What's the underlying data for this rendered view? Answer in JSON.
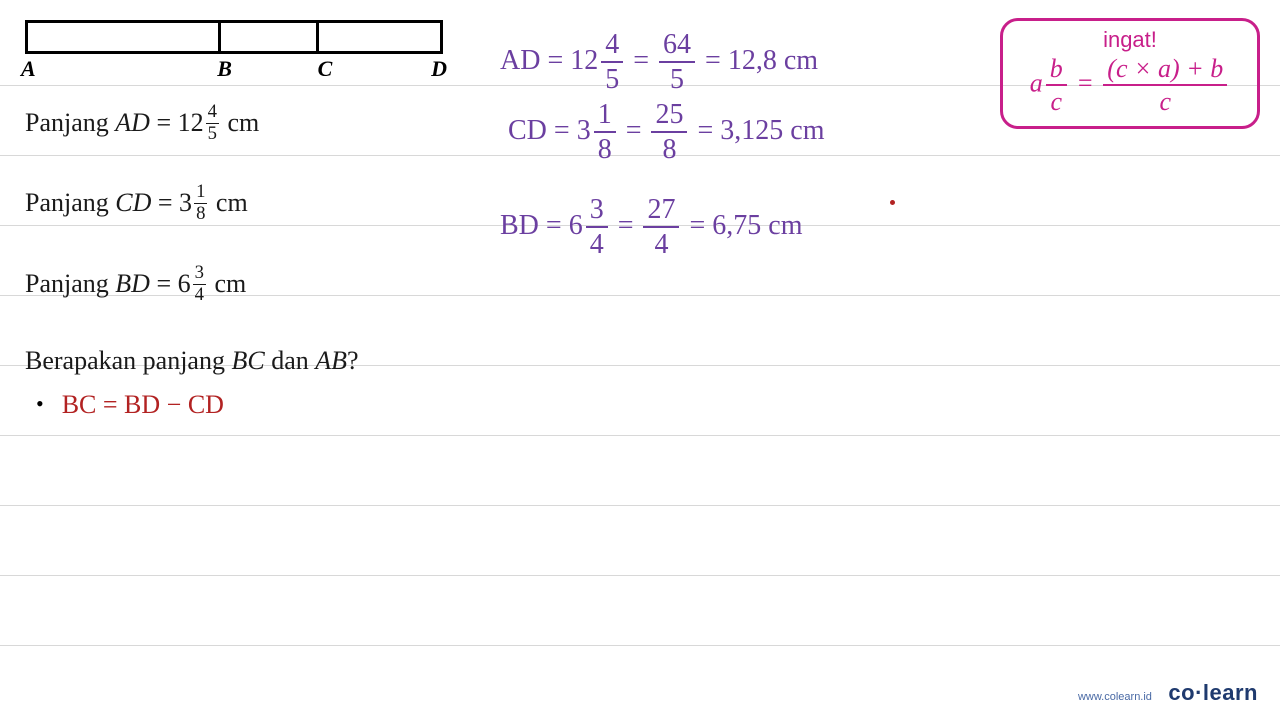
{
  "lines_y": [
    85,
    155,
    225,
    295,
    365,
    435,
    505,
    575,
    645
  ],
  "line_color": "#d8d8d8",
  "diagram": {
    "labels": {
      "A": "A",
      "B": "B",
      "C": "C",
      "D": "D"
    },
    "div1_pct": 46,
    "div2_pct": 70
  },
  "problem": {
    "row1_pre": "Panjang ",
    "row1_var": "AD",
    "row1_eq": " = 12",
    "row1_num": "4",
    "row1_den": "5",
    "row1_unit": " cm",
    "row2_pre": "Panjang ",
    "row2_var": "CD",
    "row2_eq": " = 3",
    "row2_num": "1",
    "row2_den": "8",
    "row2_unit": " cm",
    "row3_pre": "Panjang ",
    "row3_var": "BD",
    "row3_eq": " = 6",
    "row3_num": "3",
    "row3_den": "4",
    "row3_unit": " cm",
    "question_pre": "Berapakan panjang ",
    "q_bc": "BC",
    "q_mid": " dan ",
    "q_ab": "AB",
    "q_end": "?"
  },
  "purple": {
    "color": "#6b3fa0",
    "ad_lhs": "AD = 12",
    "ad_f1n": "4",
    "ad_f1d": "5",
    "ad_eq1": " = ",
    "ad_f2n": "64",
    "ad_f2d": "5",
    "ad_rhs": " = 12,8 cm",
    "cd_lhs": "CD = 3",
    "cd_f1n": "1",
    "cd_f1d": "8",
    "cd_eq1": " = ",
    "cd_f2n": "25",
    "cd_f2d": "8",
    "cd_rhs": " = 3,125 cm",
    "bd_lhs": "BD = 6",
    "bd_f1n": "3",
    "bd_f1d": "4",
    "bd_eq1": " = ",
    "bd_f2n": "27",
    "bd_f2d": "4",
    "bd_rhs": " = 6,75 cm"
  },
  "remember": {
    "title": "ingat!",
    "lhs_a": "a",
    "lhs_n": "b",
    "lhs_d": "c",
    "mid": " = ",
    "rhs_n": "(c × a) + b",
    "rhs_d": "c",
    "border_color": "#c81f8a"
  },
  "bullet": {
    "text": "BC = BD − CD",
    "color": "#b22222"
  },
  "footer": {
    "url": "www.colearn.id",
    "logo_a": "co",
    "logo_dot": "·",
    "logo_b": "learn"
  }
}
